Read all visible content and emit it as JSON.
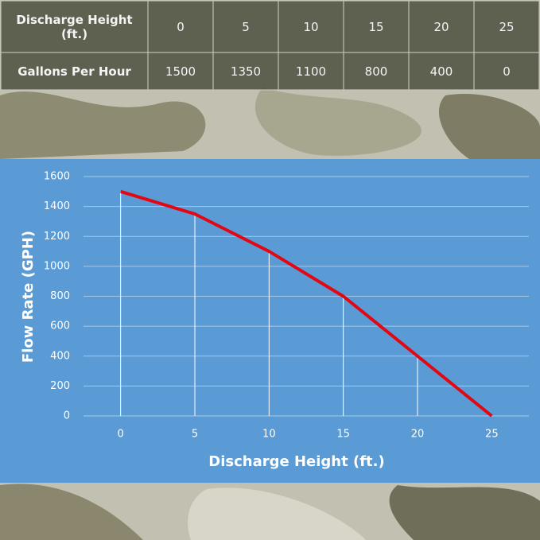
{
  "table": {
    "rows": [
      [
        "Discharge Height (ft.)",
        0,
        5,
        10,
        15,
        20,
        25
      ],
      [
        "Gallons Per Hour",
        1500,
        1350,
        1100,
        800,
        400,
        0
      ]
    ]
  },
  "chart_data": {
    "type": "line",
    "x_label": "Discharge Height (ft.)",
    "y_label": "Flow Rate (GPH)",
    "categories": [
      "0",
      "5",
      "10",
      "15",
      "20",
      "25"
    ],
    "values": [
      1500,
      1350,
      1100,
      800,
      400,
      0
    ],
    "color": "#e30613",
    "ylim": [
      0,
      1600
    ],
    "yticks": [
      0,
      200,
      400,
      600,
      800,
      1000,
      1200,
      1400,
      1600
    ],
    "grid": true,
    "drop_lines": true
  }
}
